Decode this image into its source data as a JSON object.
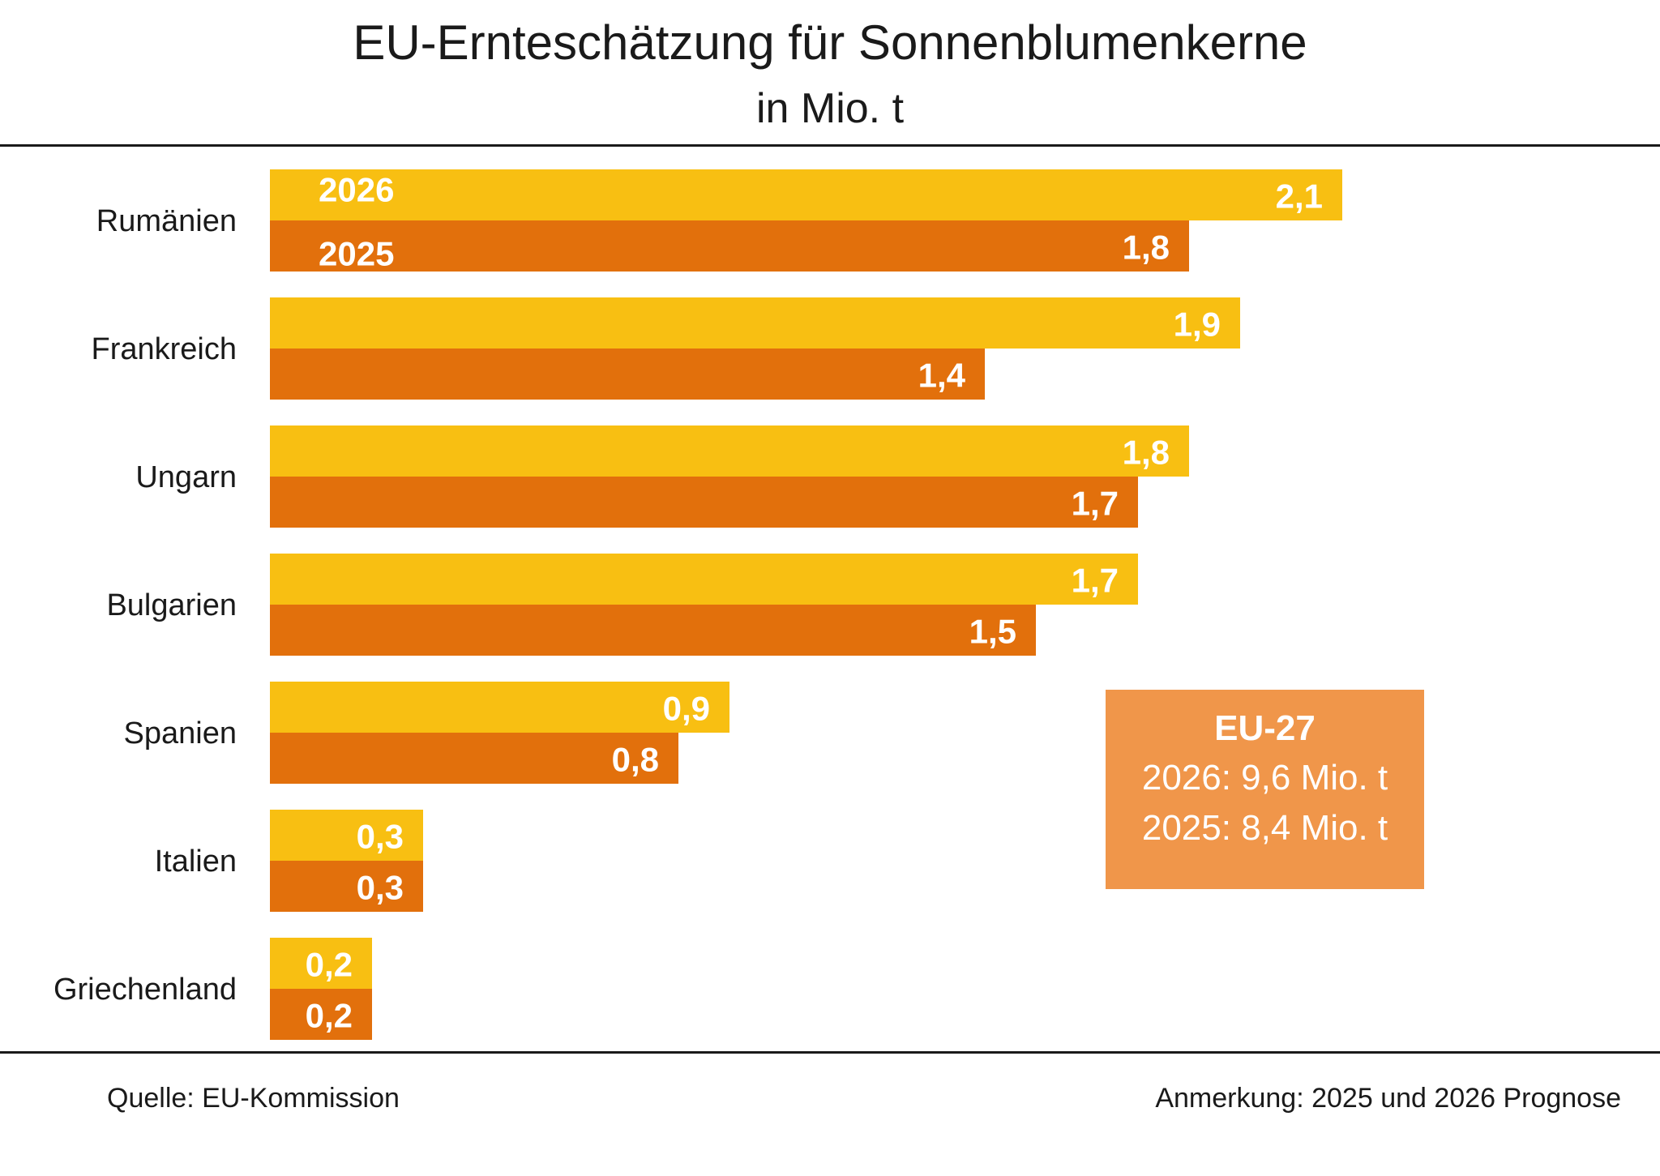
{
  "header": {
    "title": "EU-Ernteschätzung für Sonnenblumenkerne",
    "subtitle": "in Mio. t"
  },
  "colors": {
    "series_2026": "#f8bf12",
    "series_2025": "#e2700c",
    "eu_box": "#f0964a"
  },
  "chart_data": {
    "type": "bar",
    "orientation": "horizontal",
    "title": "EU-Ernteschätzung für Sonnenblumenkerne",
    "subtitle": "in Mio. t",
    "categories": [
      "Rumänien",
      "Frankreich",
      "Ungarn",
      "Bulgarien",
      "Spanien",
      "Italien",
      "Griechenland"
    ],
    "series": [
      {
        "name": "2026",
        "values": [
          2.1,
          1.9,
          1.8,
          1.7,
          0.9,
          0.3,
          0.2
        ],
        "labels": [
          "2,1",
          "1,9",
          "1,8",
          "1,7",
          "0,9",
          "0,3",
          "0,2"
        ]
      },
      {
        "name": "2025",
        "values": [
          1.8,
          1.4,
          1.7,
          1.5,
          0.8,
          0.3,
          0.2
        ],
        "labels": [
          "1,8",
          "1,4",
          "1,7",
          "1,5",
          "0,8",
          "0,3",
          "0,2"
        ]
      }
    ],
    "xlim": [
      0,
      2.2
    ],
    "grid": false,
    "legend": "inline labels on first category"
  },
  "summary": {
    "title": "EU-27",
    "line_2026": "2026: 9,6 Mio. t",
    "line_2025": "2025: 8,4 Mio. t"
  },
  "footer": {
    "source": "Quelle:  EU-Kommission",
    "note": "Anmerkung: 2025 und 2026 Prognose"
  }
}
